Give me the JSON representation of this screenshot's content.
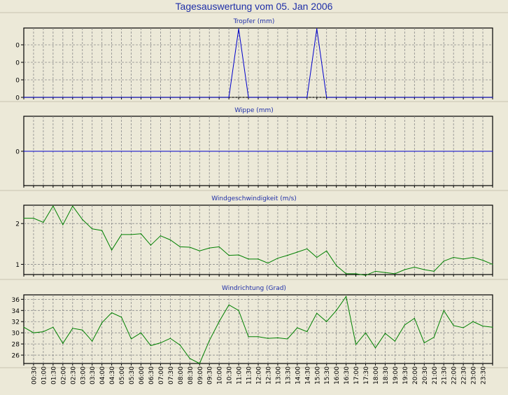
{
  "title": "Tagesauswertung vom 05. Jan 2006",
  "x_ticks": [
    "00:30",
    "01:00",
    "01:30",
    "02:00",
    "02:30",
    "03:00",
    "03:30",
    "04:00",
    "04:30",
    "05:00",
    "05:30",
    "06:00",
    "06:30",
    "07:00",
    "07:30",
    "08:00",
    "08:30",
    "09:00",
    "09:30",
    "10:00",
    "10:30",
    "11:00",
    "11:30",
    "12:00",
    "12:30",
    "13:00",
    "13:30",
    "14:00",
    "14:30",
    "15:00",
    "15:30",
    "16:00",
    "16:30",
    "17:00",
    "17:30",
    "18:00",
    "18:30",
    "19:00",
    "19:30",
    "20:00",
    "20:30",
    "21:00",
    "21:30",
    "22:00",
    "22:30",
    "23:00",
    "23:30"
  ],
  "chart_data": [
    {
      "type": "line",
      "title": "Tropfer (mm)",
      "x_start": "00:00",
      "x_step_minutes": 30,
      "yticks": [
        "0",
        "0",
        "0",
        "0"
      ],
      "ylim": [
        0,
        1
      ],
      "grid": true,
      "color": "#0000cc",
      "values": [
        0,
        0,
        0,
        0,
        0,
        0,
        0,
        0,
        0,
        0,
        0,
        0,
        0,
        0,
        0,
        0,
        0,
        0,
        0,
        0,
        0,
        0,
        1,
        0,
        0,
        0,
        0,
        0,
        0,
        0,
        1,
        0,
        0,
        0,
        0,
        0,
        0,
        0,
        0,
        0,
        0,
        0,
        0,
        0,
        0,
        0,
        0,
        0,
        0
      ]
    },
    {
      "type": "line",
      "title": "Wippe (mm)",
      "x_start": "00:00",
      "x_step_minutes": 30,
      "yticks": [
        "0"
      ],
      "ylim": [
        -1,
        1
      ],
      "grid": true,
      "color": "#0000cc",
      "values": [
        0,
        0,
        0,
        0,
        0,
        0,
        0,
        0,
        0,
        0,
        0,
        0,
        0,
        0,
        0,
        0,
        0,
        0,
        0,
        0,
        0,
        0,
        0,
        0,
        0,
        0,
        0,
        0,
        0,
        0,
        0,
        0,
        0,
        0,
        0,
        0,
        0,
        0,
        0,
        0,
        0,
        0,
        0,
        0,
        0,
        0,
        0,
        0,
        0
      ]
    },
    {
      "type": "line",
      "title": "Windgeschwindigkeit (m/s)",
      "x_start": "00:00",
      "x_step_minutes": 30,
      "yticks": [
        "2",
        "1"
      ],
      "ytick_values": [
        2,
        1
      ],
      "ylim": [
        0.75,
        2.45
      ],
      "grid": true,
      "color": "#008000",
      "values": [
        2.13,
        2.13,
        2.03,
        2.43,
        1.97,
        2.43,
        2.1,
        1.87,
        1.83,
        1.35,
        1.73,
        1.73,
        1.75,
        1.47,
        1.7,
        1.6,
        1.43,
        1.42,
        1.33,
        1.4,
        1.43,
        1.22,
        1.23,
        1.13,
        1.13,
        1.03,
        1.15,
        1.22,
        1.3,
        1.38,
        1.17,
        1.33,
        0.97,
        0.77,
        0.77,
        0.73,
        0.83,
        0.8,
        0.77,
        0.87,
        0.93,
        0.87,
        0.83,
        1.08,
        1.17,
        1.13,
        1.17,
        1.1,
        1.0
      ]
    },
    {
      "type": "line",
      "title": "Windrichtung (Grad)",
      "x_start": "00:00",
      "x_step_minutes": 30,
      "yticks": [
        "36",
        "34",
        "32",
        "30",
        "28",
        "26"
      ],
      "ytick_values": [
        36,
        34,
        32,
        30,
        28,
        26
      ],
      "ylim": [
        24.5,
        36.8
      ],
      "grid": true,
      "color": "#008000",
      "values": [
        31,
        30,
        30.2,
        31,
        28.1,
        30.8,
        30.5,
        28.5,
        31.8,
        33.6,
        32.8,
        28.9,
        30,
        27.7,
        28.2,
        29,
        27.8,
        25.4,
        24.5,
        28.6,
        32,
        35,
        34,
        29.3,
        29.3,
        29,
        29.1,
        28.9,
        30.9,
        30.2,
        33.5,
        32,
        34,
        36.5,
        27.9,
        30,
        27.3,
        29.9,
        28.5,
        31.4,
        32.6,
        28.2,
        29.2,
        34,
        31.3,
        30.9,
        32,
        31.2,
        31
      ]
    }
  ]
}
